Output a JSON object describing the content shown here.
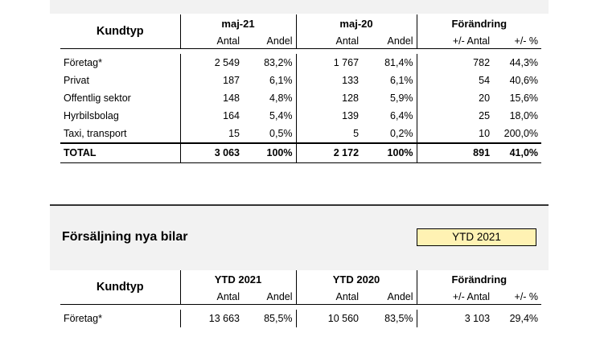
{
  "table1": {
    "kundtyp_header": "Kundtyp",
    "period1": "maj-21",
    "period2": "maj-20",
    "change_header": "Förändring",
    "sub": [
      "Antal",
      "Andel",
      "Antal",
      "Andel",
      "+/- Antal",
      "+/- %"
    ],
    "rows": [
      [
        "Företag*",
        "2 549",
        "83,2%",
        "1 767",
        "81,4%",
        "782",
        "44,3%"
      ],
      [
        "Privat",
        "187",
        "6,1%",
        "133",
        "6,1%",
        "54",
        "40,6%"
      ],
      [
        "Offentlig sektor",
        "148",
        "4,8%",
        "128",
        "5,9%",
        "20",
        "15,6%"
      ],
      [
        "Hyrbilsbolag",
        "164",
        "5,4%",
        "139",
        "6,4%",
        "25",
        "18,0%"
      ],
      [
        "Taxi, transport",
        "15",
        "0,5%",
        "5",
        "0,2%",
        "10",
        "200,0%"
      ]
    ],
    "total": [
      "TOTAL",
      "3 063",
      "100%",
      "2 172",
      "100%",
      "891",
      "41,0%"
    ]
  },
  "section2": {
    "title": "Försäljning nya bilar",
    "selector": "YTD 2021"
  },
  "table2": {
    "kundtyp_header": "Kundtyp",
    "period1": "YTD 2021",
    "period2": "YTD 2020",
    "change_header": "Förändring",
    "sub": [
      "Antal",
      "Andel",
      "Antal",
      "Andel",
      "+/- Antal",
      "+/- %"
    ],
    "rows": [
      [
        "Företag*",
        "13 663",
        "85,5%",
        "10 560",
        "83,5%",
        "3 103",
        "29,4%"
      ]
    ]
  }
}
